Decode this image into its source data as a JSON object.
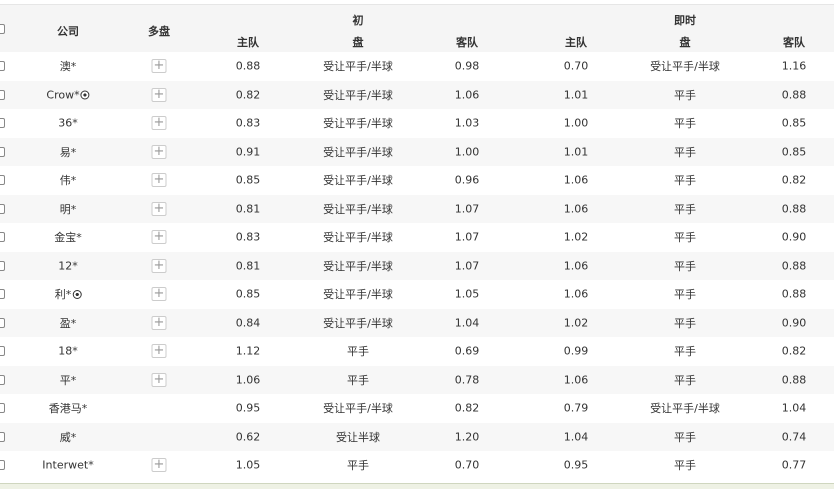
{
  "header": {
    "company": "公司",
    "multi": "多盘",
    "initial": "初",
    "live": "即时",
    "home": "主队",
    "line": "盘",
    "away": "客队"
  },
  "rows": [
    {
      "company": "澳*",
      "ball": false,
      "plus": true,
      "i_home": "0.88",
      "i_line": "受让平手/半球",
      "i_away": "0.98",
      "l_home": "0.70",
      "l_line": "受让平手/半球",
      "l_away": "1.16"
    },
    {
      "company": "Crow*",
      "ball": true,
      "plus": true,
      "i_home": "0.82",
      "i_line": "受让平手/半球",
      "i_away": "1.06",
      "l_home": "1.01",
      "l_line": "平手",
      "l_away": "0.88"
    },
    {
      "company": "36*",
      "ball": false,
      "plus": true,
      "i_home": "0.83",
      "i_line": "受让平手/半球",
      "i_away": "1.03",
      "l_home": "1.00",
      "l_line": "平手",
      "l_away": "0.85"
    },
    {
      "company": "易*",
      "ball": false,
      "plus": true,
      "i_home": "0.91",
      "i_line": "受让平手/半球",
      "i_away": "1.00",
      "l_home": "1.01",
      "l_line": "平手",
      "l_away": "0.85"
    },
    {
      "company": "伟*",
      "ball": false,
      "plus": true,
      "i_home": "0.85",
      "i_line": "受让平手/半球",
      "i_away": "0.96",
      "l_home": "1.06",
      "l_line": "平手",
      "l_away": "0.82"
    },
    {
      "company": "明*",
      "ball": false,
      "plus": true,
      "i_home": "0.81",
      "i_line": "受让平手/半球",
      "i_away": "1.07",
      "l_home": "1.06",
      "l_line": "平手",
      "l_away": "0.88"
    },
    {
      "company": "金宝*",
      "ball": false,
      "plus": true,
      "i_home": "0.83",
      "i_line": "受让平手/半球",
      "i_away": "1.07",
      "l_home": "1.02",
      "l_line": "平手",
      "l_away": "0.90"
    },
    {
      "company": "12*",
      "ball": false,
      "plus": true,
      "i_home": "0.81",
      "i_line": "受让平手/半球",
      "i_away": "1.07",
      "l_home": "1.06",
      "l_line": "平手",
      "l_away": "0.88"
    },
    {
      "company": "利*",
      "ball": true,
      "plus": true,
      "i_home": "0.85",
      "i_line": "受让平手/半球",
      "i_away": "1.05",
      "l_home": "1.06",
      "l_line": "平手",
      "l_away": "0.88"
    },
    {
      "company": "盈*",
      "ball": false,
      "plus": true,
      "i_home": "0.84",
      "i_line": "受让平手/半球",
      "i_away": "1.04",
      "l_home": "1.02",
      "l_line": "平手",
      "l_away": "0.90"
    },
    {
      "company": "18*",
      "ball": false,
      "plus": true,
      "i_home": "1.12",
      "i_line": "平手",
      "i_away": "0.69",
      "l_home": "0.99",
      "l_line": "平手",
      "l_away": "0.82"
    },
    {
      "company": "平*",
      "ball": false,
      "plus": true,
      "i_home": "1.06",
      "i_line": "平手",
      "i_away": "0.78",
      "l_home": "1.06",
      "l_line": "平手",
      "l_away": "0.88"
    },
    {
      "company": "香港马*",
      "ball": false,
      "plus": false,
      "i_home": "0.95",
      "i_line": "受让平手/半球",
      "i_away": "0.82",
      "l_home": "0.79",
      "l_line": "受让平手/半球",
      "l_away": "1.04"
    },
    {
      "company": "威*",
      "ball": false,
      "plus": false,
      "i_home": "0.62",
      "i_line": "受让半球",
      "i_away": "1.20",
      "l_home": "1.04",
      "l_line": "平手",
      "l_away": "0.74"
    },
    {
      "company": "Interwet*",
      "ball": false,
      "plus": true,
      "i_home": "1.05",
      "i_line": "平手",
      "i_away": "0.70",
      "l_home": "0.95",
      "l_line": "平手",
      "l_away": "0.77"
    }
  ]
}
